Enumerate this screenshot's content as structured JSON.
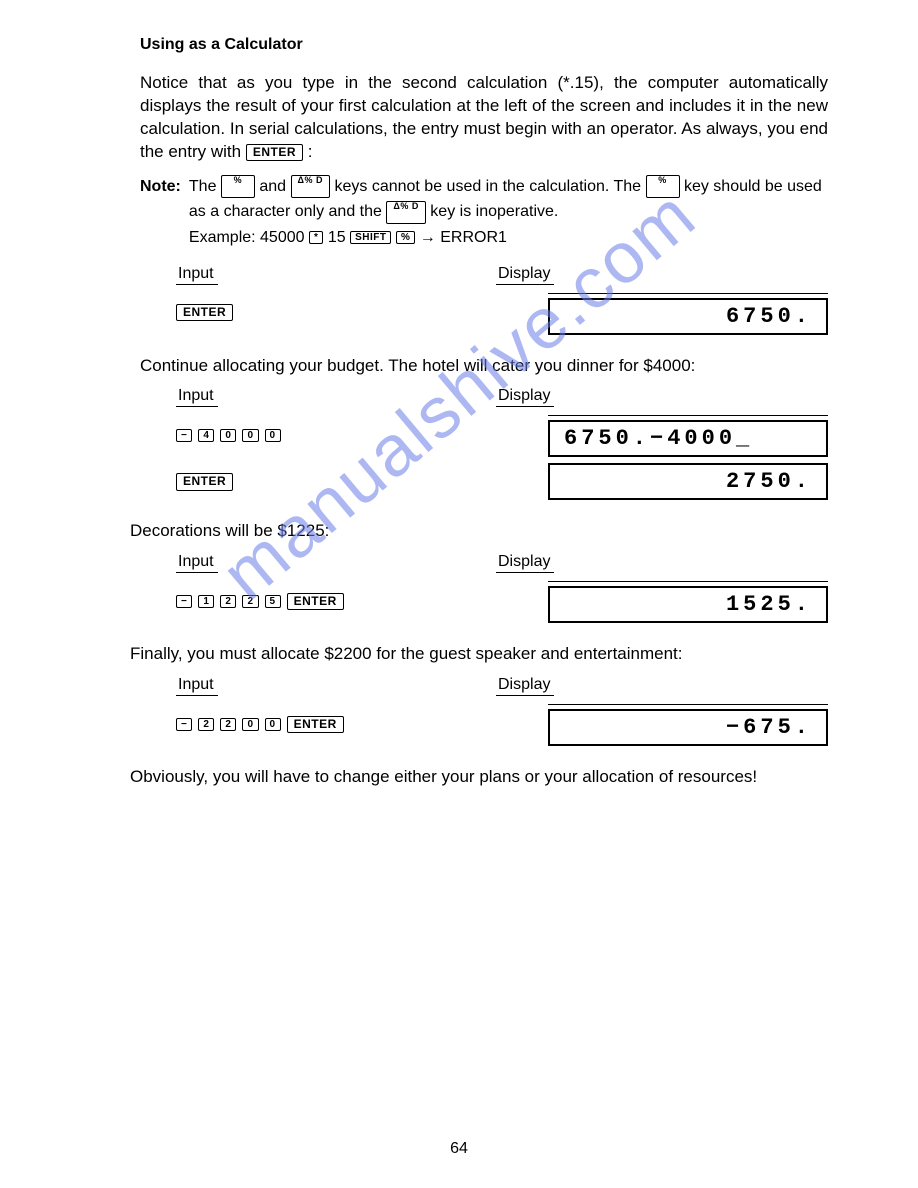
{
  "watermark": "manualshive.com",
  "page_number": "64",
  "heading": "Using as a Calculator",
  "para_intro": "Notice that as you type in the second calculation (*.15), the computer automatically displays the result of your first calculation at the left of the screen and includes it in the new calculation. In serial calculations, the entry must begin with an operator. As always, you end the entry with",
  "key_enter": "ENTER",
  "note_label": "Note:",
  "note_text_1": "The",
  "note_text_2": "and",
  "note_text_3": "keys cannot be used in the calculation. The",
  "note_text_4": "key should be used as a character only and the",
  "note_text_5": "key is inoperative.",
  "note_example_pre": "Example: 45000",
  "note_example_mid": "15",
  "note_example_arrow": "→ ERROR1",
  "key_percent_sup": "%",
  "key_delta_sup": "Δ% D",
  "key_star": "*",
  "key_shift": "SHIFT",
  "key_pct": "%",
  "col_input": "Input",
  "col_display": "Display",
  "sec1": {
    "display1": "6750."
  },
  "para2": "Continue allocating your budget. The hotel will cater you dinner for $4000:",
  "sec2": {
    "keys": [
      "−",
      "4",
      "0",
      "0",
      "0"
    ],
    "display1": "6750.−4000_",
    "display2": "2750."
  },
  "para3": "Decorations will be $1225:",
  "sec3": {
    "keys": [
      "−",
      "1",
      "2",
      "2",
      "5"
    ],
    "display1": "1525."
  },
  "para4": "Finally, you must allocate $2200 for the guest speaker and entertainment:",
  "sec4": {
    "keys": [
      "−",
      "2",
      "2",
      "0",
      "0"
    ],
    "display1": "−675."
  },
  "para5": "Obviously, you will have to change either your plans or your allocation of resources!"
}
